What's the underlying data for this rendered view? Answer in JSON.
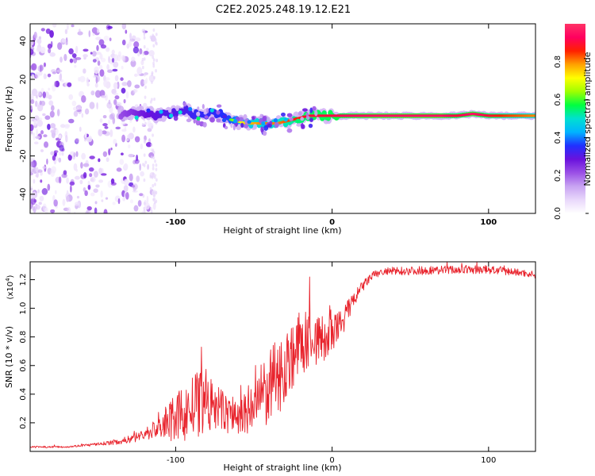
{
  "title": "C2E2.2025.248.19.12.E21",
  "chart_data": [
    {
      "type": "heatmap",
      "name": "spectrogram",
      "xlabel": "Height of straight line (km)",
      "ylabel": "Frequency (Hz)",
      "xlim": [
        -193,
        130
      ],
      "ylim": [
        -50,
        49
      ],
      "xticks": [
        -100,
        0,
        100
      ],
      "yticks": [
        -40,
        -20,
        0,
        20,
        40
      ],
      "colorbar": {
        "label": "Normalized spectral amplitude",
        "range": [
          0,
          1
        ],
        "ticks": [
          "0.0",
          "0.2",
          "0.4",
          "0.6",
          "0.8"
        ],
        "colors": [
          "#ffffff",
          "#e9d8fb",
          "#c8a3f2",
          "#9b50e6",
          "#6a12dd",
          "#2030ff",
          "#00b4ff",
          "#00e0d0",
          "#00ff40",
          "#a0ff00",
          "#ffff00",
          "#ffa000",
          "#ff2000",
          "#ff0060",
          "#ff3366"
        ]
      },
      "ridge": {
        "x": [
          -135,
          -120,
          -105,
          -95,
          -85,
          -75,
          -65,
          -55,
          -45,
          -35,
          -25,
          -15,
          -5,
          10,
          30,
          50,
          70,
          80,
          90,
          100,
          110,
          130
        ],
        "freq_hz": [
          2,
          2,
          1,
          4,
          1,
          3,
          -1,
          -3,
          -3,
          -3,
          -1,
          1,
          1,
          1,
          1,
          1,
          1,
          1,
          2,
          1,
          1,
          1
        ],
        "amplitude": [
          0.35,
          0.45,
          0.5,
          0.5,
          0.55,
          0.55,
          0.6,
          0.75,
          0.8,
          0.8,
          0.85,
          0.9,
          0.9,
          0.93,
          0.95,
          0.95,
          0.95,
          0.9,
          0.95,
          0.9,
          0.85,
          0.8
        ]
      },
      "noise_region_x": [
        -193,
        -113
      ]
    },
    {
      "type": "line",
      "name": "snr",
      "xlabel": "Height of straight line (km)",
      "ylabel": "SNR (10 * v/v)",
      "scale_label": "(x10",
      "scale_exponent": "4",
      "scale_close": ")",
      "color": "#e8222b",
      "xlim": [
        -193,
        130
      ],
      "ylim": [
        0,
        13250
      ],
      "xticks": [
        -100,
        0,
        100
      ],
      "yticks": [
        "0.2",
        "0.4",
        "0.6",
        "0.8",
        "1.0",
        "1.2"
      ],
      "series": [
        {
          "name": "SNR",
          "x": [
            -193,
            -170,
            -150,
            -135,
            -125,
            -118,
            -110,
            -105,
            -100,
            -95,
            -90,
            -85,
            -80,
            -75,
            -70,
            -65,
            -60,
            -55,
            -50,
            -45,
            -40,
            -35,
            -30,
            -25,
            -20,
            -15,
            -12,
            -10,
            -5,
            0,
            5,
            10,
            15,
            20,
            25,
            30,
            40,
            60,
            80,
            100,
            110,
            120,
            130
          ],
          "values": [
            300,
            320,
            500,
            700,
            1000,
            1300,
            1700,
            2000,
            2300,
            2600,
            3000,
            3300,
            3300,
            3100,
            2800,
            2600,
            2400,
            2600,
            3200,
            3800,
            4400,
            5200,
            6000,
            6800,
            7500,
            7800,
            8000,
            7800,
            7800,
            8100,
            8800,
            9800,
            10800,
            11600,
            12200,
            12500,
            12600,
            12650,
            12700,
            12700,
            12600,
            12500,
            12350
          ],
          "noise_amplitude": [
            60,
            60,
            100,
            200,
            350,
            500,
            900,
            1300,
            1700,
            2000,
            2200,
            2400,
            2200,
            1800,
            1500,
            1500,
            1400,
            1800,
            2100,
            2400,
            2600,
            2800,
            2600,
            2400,
            2400,
            2000,
            2000,
            1900,
            1700,
            1400,
            1200,
            800,
            500,
            400,
            300,
            300,
            300,
            300,
            300,
            300,
            300,
            250,
            250
          ]
        }
      ]
    }
  ]
}
